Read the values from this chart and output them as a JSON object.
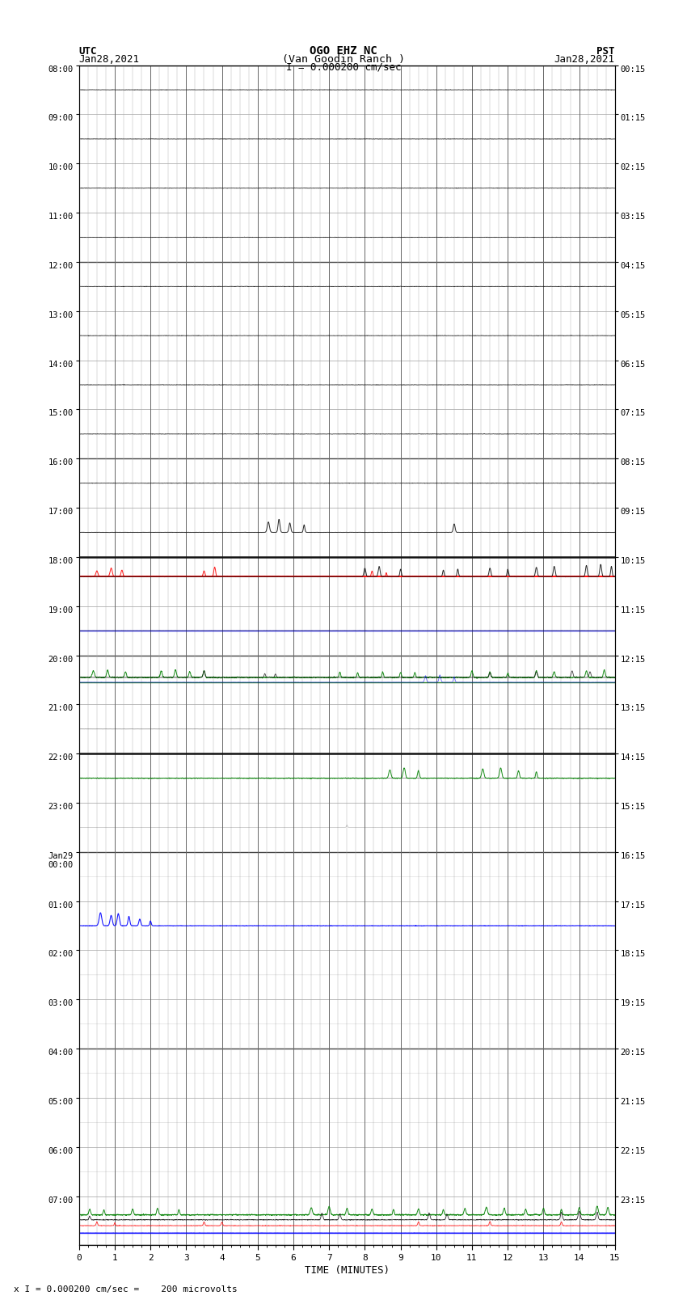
{
  "title_line1": "OGO EHZ NC",
  "title_line2": "(Van Goodin Ranch )",
  "title_line3": "I = 0.000200 cm/sec",
  "utc_label": "UTC",
  "utc_date": "Jan28,2021",
  "pst_label": "PST",
  "pst_date": "Jan28,2021",
  "xlabel": "TIME (MINUTES)",
  "footer": "x I = 0.000200 cm/sec =    200 microvolts",
  "bg_color": "#ffffff",
  "figsize": [
    8.5,
    16.13
  ],
  "dpi": 100,
  "ytick_labels_left": [
    "08:00",
    "09:00",
    "10:00",
    "11:00",
    "12:00",
    "13:00",
    "14:00",
    "15:00",
    "16:00",
    "17:00",
    "18:00",
    "19:00",
    "20:00",
    "21:00",
    "22:00",
    "23:00",
    "Jan29\n00:00",
    "01:00",
    "02:00",
    "03:00",
    "04:00",
    "05:00",
    "06:00",
    "07:00"
  ],
  "ytick_labels_right": [
    "00:15",
    "01:15",
    "02:15",
    "03:15",
    "04:15",
    "05:15",
    "06:15",
    "07:15",
    "08:15",
    "09:15",
    "10:15",
    "11:15",
    "12:15",
    "13:15",
    "14:15",
    "15:15",
    "16:15",
    "17:15",
    "18:15",
    "19:15",
    "20:15",
    "21:15",
    "22:15",
    "23:15"
  ],
  "n_rows": 24,
  "x_min": 0,
  "x_max": 15
}
